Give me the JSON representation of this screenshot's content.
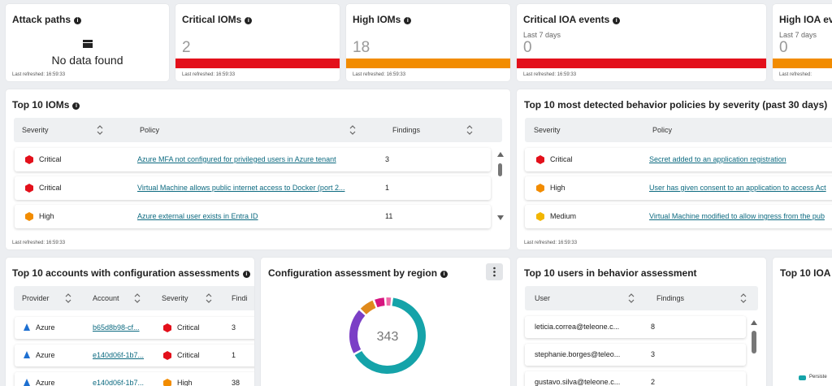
{
  "kpis": [
    {
      "title": "Attack paths",
      "empty": "No data found",
      "refreshed": "Last refreshed: 16:59:33"
    },
    {
      "title": "Critical IOMs",
      "value": 2,
      "color": "#e3101b",
      "refreshed": "Last refreshed: 16:59:33"
    },
    {
      "title": "High IOMs",
      "value": 18,
      "color": "#f28c00",
      "refreshed": "Last refreshed: 16:59:33"
    },
    {
      "title": "Critical IOA events",
      "subtitle": "Last 7 days",
      "value": 0,
      "color": "#e3101b",
      "refreshed": "Last refreshed: 16:59:33"
    },
    {
      "title": "High IOA ev",
      "subtitle": "Last 7 days",
      "value": 0,
      "color": "#f28c00",
      "refreshed": "Last refreshed:"
    }
  ],
  "severity_colors": {
    "Critical": "#e3101b",
    "High": "#f28c00",
    "Medium": "#f2b600"
  },
  "top_ioms": {
    "title": "Top 10 IOMs",
    "columns": [
      "Severity",
      "Policy",
      "Findings"
    ],
    "rows": [
      [
        "Critical",
        "Azure MFA not configured for privileged users in Azure tenant",
        3
      ],
      [
        "Critical",
        "Virtual Machine allows public internet access to Docker (port 2...",
        1
      ],
      [
        "High",
        "Azure external user exists in Entra ID",
        11
      ]
    ],
    "refreshed": "Last refreshed: 16:59:33"
  },
  "behavior_policies": {
    "title": "Top 10 most detected behavior policies by severity (past 30 days)",
    "columns": [
      "Severity",
      "Policy"
    ],
    "rows": [
      [
        "Critical",
        "Secret added to an application registration"
      ],
      [
        "High",
        "User has given consent to an application to access Act"
      ],
      [
        "Medium",
        "Virtual Machine modified to allow ingress from the pub"
      ]
    ],
    "refreshed": "Last refreshed: 16:59:33"
  },
  "accounts": {
    "title": "Top 10 accounts with configuration assessments",
    "columns": [
      "Provider",
      "Account",
      "Severity",
      "Findi"
    ],
    "rows": [
      [
        "Azure",
        "b65d8b98-cf...",
        "Critical",
        3
      ],
      [
        "Azure",
        "e140d06f-1b7...",
        "Critical",
        1
      ],
      [
        "Azure",
        "e140d06f-1b7...",
        "High",
        38
      ]
    ]
  },
  "region": {
    "title": "Configuration assessment by region",
    "total": 343,
    "segments": [
      {
        "value": 223,
        "color": "#15a3a9"
      },
      {
        "value": 69,
        "color": "#7b3fc6"
      },
      {
        "value": 24,
        "color": "#e08a1c"
      },
      {
        "value": 17,
        "color": "#d6157f"
      },
      {
        "value": 10,
        "color": "#f06aa8"
      }
    ]
  },
  "users": {
    "title": "Top 10 users in behavior assessment",
    "columns": [
      "User",
      "Findings"
    ],
    "rows": [
      [
        "leticia.correa@teleone.c...",
        8
      ],
      [
        "stephanie.borges@teleo...",
        3
      ],
      [
        "gustavo.silva@teleone.c...",
        2
      ]
    ]
  },
  "ioa": {
    "title": "Top 10 IOA a",
    "legend": "Persiste"
  }
}
